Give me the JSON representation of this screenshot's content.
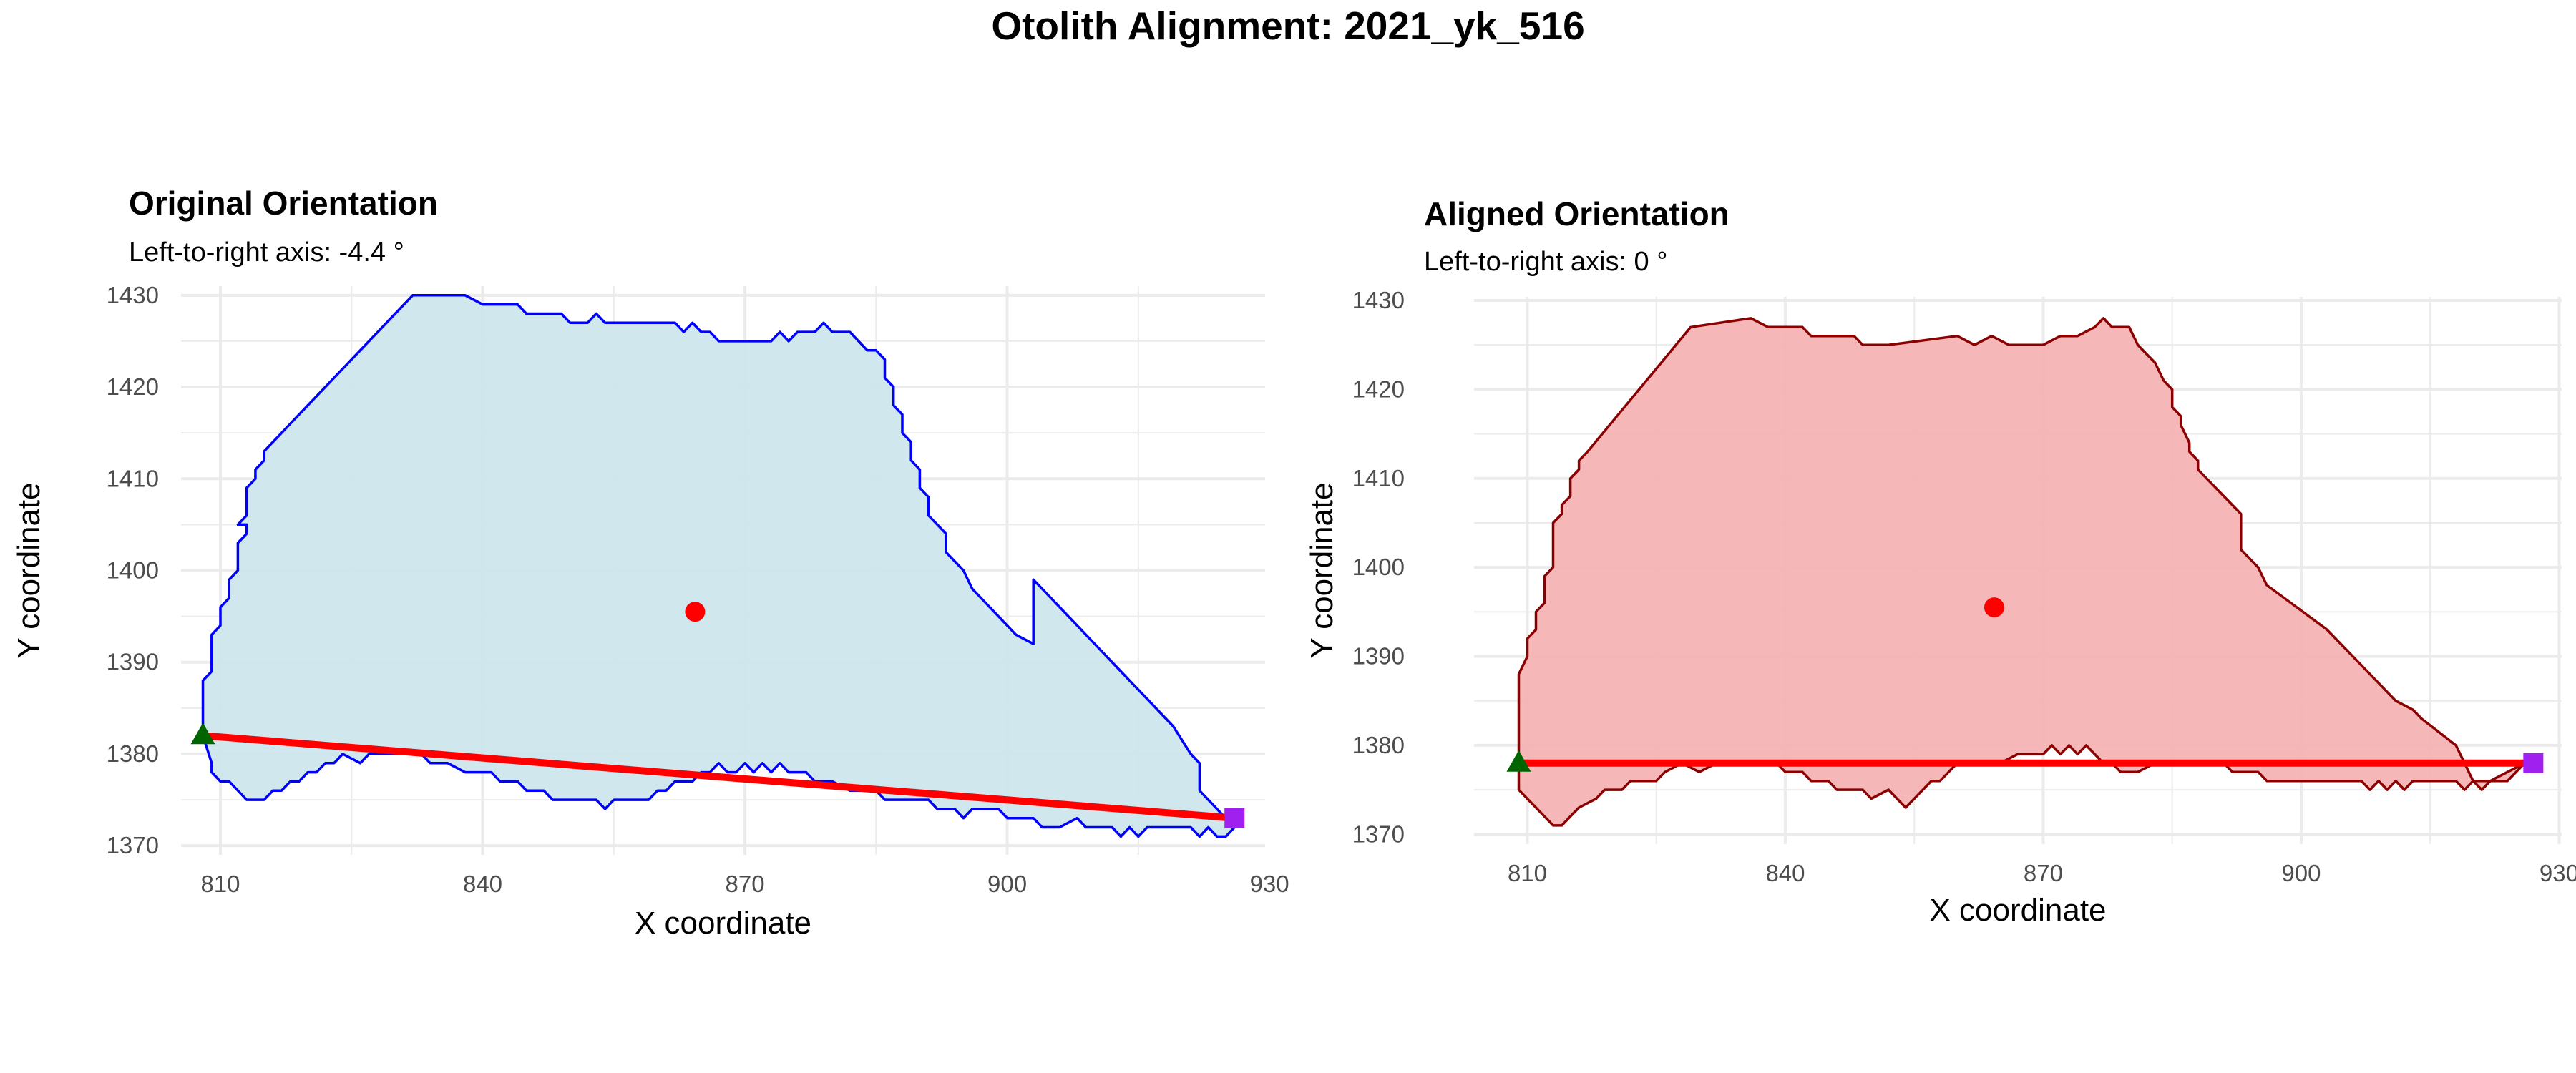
{
  "figure": {
    "title": "Otolith Alignment: 2021_yk_516"
  },
  "chart_data": [
    {
      "type": "polygon-scatter",
      "title": "Original Orientation",
      "subtitle": "Left-to-right axis: -4.4 °",
      "xlabel": "X coordinate",
      "ylabel": "Y coordinate",
      "xlim": [
        805.5,
        929.5
      ],
      "ylim": [
        1369,
        1431
      ],
      "x_ticks": [
        810,
        840,
        870,
        900,
        930
      ],
      "y_ticks": [
        1370,
        1380,
        1390,
        1400,
        1410,
        1420,
        1430
      ],
      "grid": true,
      "legend": "none",
      "colors": {
        "fill": "#cce6ec",
        "outline": "#0000ff",
        "axis_line": "#ff0000",
        "centroid": "#ff0000",
        "left_marker": "#006400",
        "right_marker": "#a020f0"
      },
      "outline": [
        [
          808,
          1382
        ],
        [
          808,
          1388
        ],
        [
          809,
          1389
        ],
        [
          809,
          1393
        ],
        [
          810,
          1394
        ],
        [
          810,
          1396
        ],
        [
          811,
          1397
        ],
        [
          811,
          1399
        ],
        [
          812,
          1400
        ],
        [
          812,
          1403
        ],
        [
          813,
          1404
        ],
        [
          813,
          1405
        ],
        [
          812,
          1405
        ],
        [
          813,
          1406
        ],
        [
          813,
          1409
        ],
        [
          814,
          1410
        ],
        [
          814,
          1411
        ],
        [
          815,
          1412
        ],
        [
          815,
          1413
        ],
        [
          816,
          1414
        ],
        [
          817,
          1415
        ],
        [
          818,
          1416
        ],
        [
          830,
          1428
        ],
        [
          832,
          1430
        ],
        [
          838,
          1430
        ],
        [
          840,
          1429
        ],
        [
          844,
          1429
        ],
        [
          845,
          1428
        ],
        [
          849,
          1428
        ],
        [
          850,
          1427
        ],
        [
          852,
          1427
        ],
        [
          853,
          1428
        ],
        [
          854,
          1427
        ],
        [
          862,
          1427
        ],
        [
          863,
          1426
        ],
        [
          864,
          1427
        ],
        [
          865,
          1426
        ],
        [
          866,
          1426
        ],
        [
          867,
          1425
        ],
        [
          873,
          1425
        ],
        [
          874,
          1426
        ],
        [
          875,
          1425
        ],
        [
          876,
          1426
        ],
        [
          878,
          1426
        ],
        [
          879,
          1427
        ],
        [
          880,
          1426
        ],
        [
          882,
          1426
        ],
        [
          883,
          1425
        ],
        [
          884,
          1424
        ],
        [
          885,
          1424
        ],
        [
          886,
          1423
        ],
        [
          886,
          1421
        ],
        [
          887,
          1420
        ],
        [
          887,
          1418
        ],
        [
          888,
          1417
        ],
        [
          888,
          1415
        ],
        [
          889,
          1414
        ],
        [
          889,
          1412
        ],
        [
          890,
          1411
        ],
        [
          890,
          1409
        ],
        [
          891,
          1408
        ],
        [
          891,
          1406
        ],
        [
          893,
          1404
        ],
        [
          893,
          1402
        ],
        [
          895,
          1400
        ],
        [
          896,
          1398
        ],
        [
          901,
          1393
        ],
        [
          903,
          1392
        ],
        [
          903,
          1399
        ],
        [
          904,
          1398
        ],
        [
          913,
          1389
        ],
        [
          914,
          1388
        ],
        [
          916,
          1386
        ],
        [
          919,
          1383
        ],
        [
          921,
          1380
        ],
        [
          922,
          1379
        ],
        [
          922,
          1376
        ],
        [
          923,
          1375
        ],
        [
          924,
          1374
        ],
        [
          926,
          1372
        ],
        [
          925,
          1371
        ],
        [
          924,
          1371
        ],
        [
          923,
          1372
        ],
        [
          922,
          1371
        ],
        [
          921,
          1372
        ],
        [
          920,
          1372
        ],
        [
          919,
          1372
        ],
        [
          917,
          1372
        ],
        [
          916,
          1372
        ],
        [
          915,
          1371
        ],
        [
          914,
          1372
        ],
        [
          913,
          1371
        ],
        [
          912,
          1372
        ],
        [
          910,
          1372
        ],
        [
          909,
          1372
        ],
        [
          908,
          1373
        ],
        [
          906,
          1372
        ],
        [
          904,
          1372
        ],
        [
          903,
          1373
        ],
        [
          900,
          1373
        ],
        [
          899,
          1374
        ],
        [
          896,
          1374
        ],
        [
          895,
          1373
        ],
        [
          894,
          1374
        ],
        [
          893,
          1374
        ],
        [
          892,
          1374
        ],
        [
          891,
          1375
        ],
        [
          889,
          1375
        ],
        [
          888,
          1375
        ],
        [
          886,
          1375
        ],
        [
          885,
          1376
        ],
        [
          883,
          1376
        ],
        [
          882,
          1376
        ],
        [
          880,
          1377
        ],
        [
          878,
          1377
        ],
        [
          877,
          1378
        ],
        [
          875,
          1378
        ],
        [
          874,
          1379
        ],
        [
          873,
          1378
        ],
        [
          872,
          1379
        ],
        [
          871,
          1378
        ],
        [
          870,
          1379
        ],
        [
          869,
          1378
        ],
        [
          868,
          1378
        ],
        [
          867,
          1379
        ],
        [
          866,
          1378
        ],
        [
          865,
          1378
        ],
        [
          864,
          1377
        ],
        [
          862,
          1377
        ],
        [
          861,
          1376
        ],
        [
          860,
          1376
        ],
        [
          859,
          1375
        ],
        [
          856,
          1375
        ],
        [
          855,
          1375
        ],
        [
          854,
          1374
        ],
        [
          853,
          1375
        ],
        [
          850,
          1375
        ],
        [
          849,
          1375
        ],
        [
          848,
          1375
        ],
        [
          847,
          1376
        ],
        [
          845,
          1376
        ],
        [
          844,
          1377
        ],
        [
          842,
          1377
        ],
        [
          841,
          1378
        ],
        [
          838,
          1378
        ],
        [
          836,
          1379
        ],
        [
          834,
          1379
        ],
        [
          833,
          1380
        ],
        [
          831,
          1380
        ],
        [
          829,
          1380
        ],
        [
          827,
          1380
        ],
        [
          826,
          1379
        ],
        [
          824,
          1380
        ],
        [
          823,
          1379
        ],
        [
          822,
          1379
        ],
        [
          821,
          1378
        ],
        [
          820,
          1378
        ],
        [
          819,
          1377
        ],
        [
          818,
          1377
        ],
        [
          817,
          1376
        ],
        [
          816,
          1376
        ],
        [
          815,
          1375
        ],
        [
          814,
          1375
        ],
        [
          813,
          1375
        ],
        [
          812,
          1376
        ],
        [
          811,
          1377
        ],
        [
          810,
          1377
        ],
        [
          809,
          1378
        ],
        [
          809,
          1379
        ],
        [
          808,
          1382
        ]
      ],
      "centroid": [
        864.3,
        1395.5
      ],
      "left_point": [
        808,
        1382
      ],
      "right_point": [
        926,
        1373
      ]
    },
    {
      "type": "polygon-scatter",
      "title": "Aligned Orientation",
      "subtitle": "Left-to-right axis: 0 °",
      "xlabel": "X coordinate",
      "ylabel": "Y coordinate",
      "xlim": [
        803.8,
        930.3
      ],
      "ylim": [
        1368.9,
        1430.4
      ],
      "x_ticks": [
        810,
        840,
        870,
        900,
        930
      ],
      "y_ticks": [
        1370,
        1380,
        1390,
        1400,
        1410,
        1420,
        1430
      ],
      "grid": true,
      "legend": "none",
      "colors": {
        "fill": "#f4b3b3",
        "outline": "#8b0000",
        "axis_line": "#ff0000",
        "centroid": "#ff0000",
        "left_marker": "#006400",
        "right_marker": "#a020f0"
      },
      "outline": [
        [
          809,
          1378
        ],
        [
          809,
          1384
        ],
        [
          809,
          1388
        ],
        [
          810,
          1390
        ],
        [
          810,
          1392
        ],
        [
          811,
          1393
        ],
        [
          811,
          1395
        ],
        [
          812,
          1396
        ],
        [
          812,
          1399
        ],
        [
          813,
          1400
        ],
        [
          813,
          1401
        ],
        [
          813,
          1402
        ],
        [
          813,
          1405
        ],
        [
          814,
          1406
        ],
        [
          814,
          1407
        ],
        [
          815,
          1408
        ],
        [
          815,
          1410
        ],
        [
          816,
          1411
        ],
        [
          816,
          1412
        ],
        [
          817,
          1413
        ],
        [
          829,
          1427
        ],
        [
          836,
          1428
        ],
        [
          838,
          1427
        ],
        [
          842,
          1427
        ],
        [
          843,
          1426
        ],
        [
          848,
          1426
        ],
        [
          849,
          1425
        ],
        [
          852,
          1425
        ],
        [
          860,
          1426
        ],
        [
          862,
          1425
        ],
        [
          864,
          1426
        ],
        [
          866,
          1425
        ],
        [
          870,
          1425
        ],
        [
          872,
          1426
        ],
        [
          874,
          1426
        ],
        [
          876,
          1427
        ],
        [
          877,
          1428
        ],
        [
          878,
          1427
        ],
        [
          880,
          1427
        ],
        [
          881,
          1425
        ],
        [
          882,
          1424
        ],
        [
          883,
          1423
        ],
        [
          884,
          1421
        ],
        [
          885,
          1420
        ],
        [
          885,
          1418
        ],
        [
          886,
          1417
        ],
        [
          886,
          1416
        ],
        [
          887,
          1414
        ],
        [
          887,
          1413
        ],
        [
          888,
          1412
        ],
        [
          888,
          1411
        ],
        [
          889,
          1410
        ],
        [
          891,
          1408
        ],
        [
          893,
          1406
        ],
        [
          893,
          1402
        ],
        [
          895,
          1400
        ],
        [
          896,
          1398
        ],
        [
          903,
          1393
        ],
        [
          911,
          1385
        ],
        [
          913,
          1384
        ],
        [
          914,
          1383
        ],
        [
          918,
          1380
        ],
        [
          919,
          1378
        ],
        [
          920,
          1376
        ],
        [
          921,
          1375
        ],
        [
          922,
          1376
        ],
        [
          924,
          1377
        ],
        [
          926,
          1378
        ],
        [
          925,
          1377
        ],
        [
          924,
          1376
        ],
        [
          923,
          1376
        ],
        [
          922,
          1376
        ],
        [
          920,
          1376
        ],
        [
          919,
          1375
        ],
        [
          918,
          1376
        ],
        [
          915,
          1376
        ],
        [
          914,
          1376
        ],
        [
          913,
          1376
        ],
        [
          912,
          1375
        ],
        [
          911,
          1376
        ],
        [
          910,
          1375
        ],
        [
          909,
          1376
        ],
        [
          908,
          1375
        ],
        [
          907,
          1376
        ],
        [
          905,
          1376
        ],
        [
          904,
          1376
        ],
        [
          903,
          1376
        ],
        [
          901,
          1376
        ],
        [
          900,
          1376
        ],
        [
          899,
          1376
        ],
        [
          897,
          1376
        ],
        [
          896,
          1376
        ],
        [
          895,
          1377
        ],
        [
          893,
          1377
        ],
        [
          892,
          1377
        ],
        [
          891,
          1378
        ],
        [
          888,
          1378
        ],
        [
          885,
          1378
        ],
        [
          884,
          1378
        ],
        [
          883,
          1378
        ],
        [
          881,
          1377
        ],
        [
          879,
          1377
        ],
        [
          878,
          1378
        ],
        [
          877,
          1378
        ],
        [
          876,
          1379
        ],
        [
          875,
          1380
        ],
        [
          874,
          1379
        ],
        [
          873,
          1380
        ],
        [
          872,
          1379
        ],
        [
          871,
          1380
        ],
        [
          870,
          1379
        ],
        [
          869,
          1379
        ],
        [
          868,
          1379
        ],
        [
          867,
          1379
        ],
        [
          865,
          1378
        ],
        [
          864,
          1378
        ],
        [
          862,
          1378
        ],
        [
          860,
          1378
        ],
        [
          859,
          1377
        ],
        [
          858,
          1376
        ],
        [
          857,
          1376
        ],
        [
          856,
          1375
        ],
        [
          855,
          1374
        ],
        [
          854,
          1373
        ],
        [
          853,
          1374
        ],
        [
          852,
          1375
        ],
        [
          850,
          1374
        ],
        [
          849,
          1375
        ],
        [
          847,
          1375
        ],
        [
          846,
          1375
        ],
        [
          845,
          1376
        ],
        [
          843,
          1376
        ],
        [
          842,
          1377
        ],
        [
          840,
          1377
        ],
        [
          839,
          1378
        ],
        [
          836,
          1378
        ],
        [
          835,
          1378
        ],
        [
          833,
          1378
        ],
        [
          832,
          1378
        ],
        [
          830,
          1377
        ],
        [
          828,
          1378
        ],
        [
          826,
          1377
        ],
        [
          825,
          1376
        ],
        [
          824,
          1376
        ],
        [
          822,
          1376
        ],
        [
          821,
          1375
        ],
        [
          819,
          1375
        ],
        [
          818,
          1374
        ],
        [
          816,
          1373
        ],
        [
          815,
          1372
        ],
        [
          814,
          1371
        ],
        [
          813,
          1371
        ],
        [
          812,
          1372
        ],
        [
          811,
          1373
        ],
        [
          810,
          1374
        ],
        [
          809,
          1375
        ],
        [
          809,
          1378
        ]
      ],
      "centroid": [
        864.3,
        1395.5
      ],
      "left_point": [
        809,
        1378
      ],
      "right_point": [
        927,
        1378
      ]
    }
  ]
}
